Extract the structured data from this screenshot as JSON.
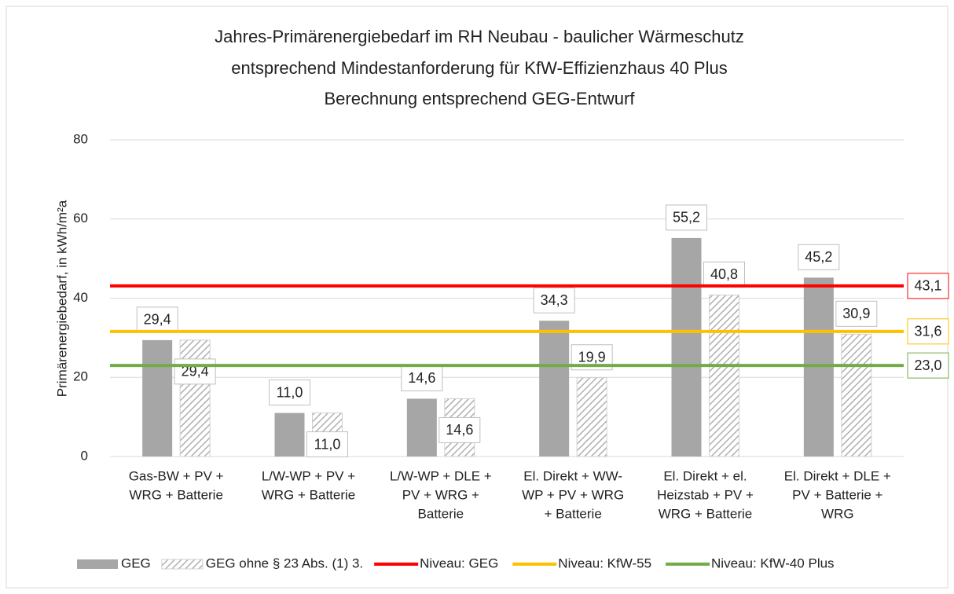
{
  "chart_data": {
    "type": "bar",
    "title": [
      "Jahres-Primärenergiebedarf im RH Neubau - baulicher Wärmeschutz",
      "entsprechend Mindestanforderung für KfW-Effizienzhaus 40 Plus",
      "Berechnung entsprechend GEG-Entwurf"
    ],
    "y_label": "Primärenergiebedarf, in kWh/m²a",
    "categories": [
      [
        "Gas-BW + PV +",
        "WRG + Batterie"
      ],
      [
        "L/W-WP + PV +",
        "WRG + Batterie"
      ],
      [
        "L/W-WP + DLE +",
        "PV  + WRG +",
        "Batterie"
      ],
      [
        "El. Direkt + WW-",
        "WP + PV + WRG",
        "+ Batterie"
      ],
      [
        "El. Direkt + el.",
        "Heizstab + PV +",
        "WRG + Batterie"
      ],
      [
        "El. Direkt + DLE +",
        "PV + Batterie +",
        "WRG"
      ]
    ],
    "series": [
      {
        "name": "GEG",
        "color": "#a6a6a6",
        "pattern": "solid",
        "values": [
          29.4,
          11.0,
          14.6,
          34.3,
          55.2,
          45.2
        ],
        "value_labels": [
          "29,4",
          "11,0",
          "14,6",
          "34,3",
          "55,2",
          "45,2"
        ]
      },
      {
        "name": "GEG ohne § 23 Abs. (1) 3.",
        "color": "#a6a6a6",
        "pattern": "hatch",
        "values": [
          29.4,
          11.0,
          14.6,
          19.9,
          40.8,
          30.9
        ],
        "value_labels": [
          "29,4",
          "11,0",
          "14,6",
          "19,9",
          "40,8",
          "30,9"
        ]
      }
    ],
    "reference_lines": [
      {
        "name": "Niveau: GEG",
        "color": "#ff0000",
        "value": 43.1,
        "value_label": "43,1"
      },
      {
        "name": "Niveau: KfW-55",
        "color": "#ffc000",
        "value": 31.6,
        "value_label": "31,6"
      },
      {
        "name": "Niveau: KfW-40 Plus",
        "color": "#70ad47",
        "value": 23.0,
        "value_label": "23,0"
      }
    ],
    "ylim": [
      0,
      80
    ],
    "yticks": [
      0,
      20,
      40,
      60,
      80
    ],
    "grid": true,
    "legend": "bottom"
  }
}
